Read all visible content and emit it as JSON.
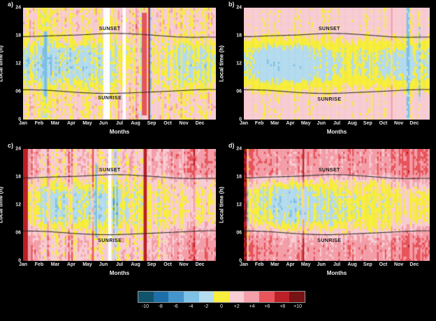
{
  "figure": {
    "background": "#000000",
    "text_color": "#ffffff"
  },
  "axes": {
    "ylabel": "Local time (h)",
    "xlabel": "Months",
    "y_ticks": [
      {
        "label": "0",
        "value": 0
      },
      {
        "label": "06",
        "value": 6
      },
      {
        "label": "12",
        "value": 12
      },
      {
        "label": "18",
        "value": 18
      },
      {
        "label": "24",
        "value": 24
      }
    ],
    "x_ticks": [
      "Jan",
      "Feb",
      "Mar",
      "Apr",
      "May",
      "Jun",
      "Jul",
      "Aug",
      "Sep",
      "Oct",
      "Nov",
      "Dec"
    ]
  },
  "annotations": {
    "sunset": "SUNSET",
    "sunrise": "SUNRISE"
  },
  "chart_data": {
    "type": "heatmap",
    "x_range_months": [
      0,
      12
    ],
    "y_range_hours": [
      0,
      24
    ],
    "sunset_h": [
      17.8,
      17.95,
      18.05,
      18.15,
      18.35,
      18.5,
      18.45,
      18.25,
      18.0,
      17.75,
      17.65,
      17.7
    ],
    "sunrise_h": [
      6.4,
      6.3,
      6.05,
      5.8,
      5.65,
      5.6,
      5.7,
      5.85,
      6.0,
      6.15,
      6.35,
      6.45
    ],
    "time_bin_centers_h": [
      1,
      3,
      5,
      7,
      9,
      11,
      13,
      15,
      17,
      19,
      21,
      23
    ],
    "colorbar": {
      "min": -10,
      "max": 10,
      "colors": [
        "#11536b",
        "#1e6fa9",
        "#4395cc",
        "#7fc1e4",
        "#b5dcef",
        "#f8ee3d",
        "#f9cdd4",
        "#f49fa9",
        "#e8555b",
        "#bb2026",
        "#771215"
      ],
      "labels": [
        "-10",
        "-8",
        "-6",
        "-4",
        "-2",
        "0",
        "+2",
        "+4",
        "+6",
        "+8",
        "+10"
      ]
    },
    "panels": [
      {
        "id": "a",
        "label": "a)",
        "noise_col": 1.3,
        "noise_cell": 1.1,
        "stripe_prob": 0.05,
        "stripe_bias": 0.5,
        "grid": [
          [
            1.5,
            0.3,
            1.5,
            1.5,
            1.5,
            1.5,
            1.6,
            1.8,
            1.5,
            1.5,
            1.5,
            1.5
          ],
          [
            1.5,
            0.2,
            1.5,
            1.5,
            1.4,
            1.5,
            1.6,
            1.8,
            1.5,
            1.5,
            1.5,
            1.5
          ],
          [
            1.5,
            0.4,
            1.5,
            1.5,
            1.4,
            1.5,
            1.5,
            1.8,
            1.5,
            1.5,
            1.5,
            1.5
          ],
          [
            0.6,
            -0.8,
            0.5,
            0.4,
            0.4,
            0.6,
            1.0,
            1.2,
            0.8,
            0.5,
            0.5,
            0.6
          ],
          [
            -1.0,
            -2.2,
            -1.2,
            -1.6,
            -1.2,
            -0.8,
            0.6,
            1.2,
            0.6,
            -0.8,
            -1.0,
            -1.0
          ],
          [
            -1.6,
            -2.6,
            -1.6,
            -2.0,
            -1.6,
            -1.0,
            0.4,
            1.2,
            0.5,
            -1.0,
            -1.4,
            -1.4
          ],
          [
            -1.6,
            -2.6,
            -1.6,
            -2.0,
            -1.6,
            -1.0,
            -0.4,
            1.0,
            0.5,
            -1.0,
            -1.4,
            -1.4
          ],
          [
            -1.0,
            -2.0,
            -1.2,
            -1.5,
            -1.2,
            -0.8,
            -0.4,
            0.8,
            0.6,
            -0.8,
            -1.0,
            -1.0
          ],
          [
            0.6,
            -0.8,
            0.5,
            0.5,
            0.5,
            0.6,
            0.8,
            1.2,
            1.0,
            0.6,
            0.6,
            0.6
          ],
          [
            1.5,
            0.4,
            1.5,
            1.5,
            1.5,
            1.5,
            1.6,
            1.8,
            1.5,
            1.5,
            1.5,
            1.5
          ],
          [
            1.5,
            0.4,
            1.5,
            1.5,
            1.5,
            1.5,
            1.6,
            1.8,
            1.5,
            1.5,
            1.5,
            1.5
          ],
          [
            1.5,
            0.4,
            1.5,
            1.5,
            1.5,
            1.5,
            1.6,
            1.8,
            1.5,
            1.5,
            1.5,
            1.5
          ]
        ],
        "events": [
          {
            "month": 7.45,
            "width": 0.3,
            "t0": 1,
            "t1": 23,
            "value": 6.5
          },
          {
            "month": 7.8,
            "width": 0.1,
            "t0": 0,
            "t1": 24,
            "value": 8.5
          },
          {
            "month": 1.35,
            "width": 0.15,
            "t0": 5,
            "t1": 19,
            "value": -4.5
          }
        ],
        "gaps": [
          {
            "month": 4.95,
            "width": 0.5
          },
          {
            "month": 6.2,
            "width": 0.18
          }
        ]
      },
      {
        "id": "b",
        "label": "b)",
        "noise_col": 0.55,
        "noise_cell": 0.5,
        "stripe_prob": 0.02,
        "stripe_bias": 0.3,
        "grid": [
          [
            1.6,
            1.5,
            1.5,
            1.5,
            1.6,
            1.6,
            1.7,
            1.7,
            1.6,
            1.6,
            1.4,
            1.5
          ],
          [
            1.6,
            1.5,
            1.5,
            1.5,
            1.6,
            1.6,
            1.7,
            1.7,
            1.6,
            1.6,
            1.4,
            1.5
          ],
          [
            1.6,
            1.5,
            1.5,
            1.5,
            1.6,
            1.6,
            1.7,
            1.7,
            1.6,
            1.6,
            1.4,
            1.5
          ],
          [
            0.8,
            0.2,
            0.1,
            0.2,
            0.5,
            0.8,
            1.0,
            1.1,
            1.0,
            0.8,
            0.4,
            0.6
          ],
          [
            -0.8,
            -1.8,
            -2.0,
            -1.9,
            -1.4,
            -0.9,
            -0.5,
            -0.5,
            -0.6,
            -1.0,
            -1.4,
            -1.0
          ],
          [
            -1.2,
            -2.3,
            -2.5,
            -2.4,
            -1.8,
            -1.3,
            -0.8,
            -0.8,
            -0.9,
            -1.4,
            -1.8,
            -1.3
          ],
          [
            -1.2,
            -2.3,
            -2.5,
            -2.4,
            -1.8,
            -1.3,
            -0.8,
            -0.8,
            -0.9,
            -1.4,
            -1.8,
            -1.3
          ],
          [
            -0.8,
            -1.8,
            -2.0,
            -1.9,
            -1.4,
            -0.9,
            -0.5,
            -0.5,
            -0.6,
            -1.0,
            -1.4,
            -1.0
          ],
          [
            0.8,
            0.3,
            0.2,
            0.4,
            0.7,
            1.0,
            1.1,
            1.1,
            1.0,
            0.8,
            0.5,
            0.7
          ],
          [
            1.6,
            1.5,
            1.5,
            1.5,
            1.6,
            1.6,
            1.7,
            1.7,
            1.6,
            1.6,
            1.4,
            1.5
          ],
          [
            1.6,
            1.5,
            1.5,
            1.5,
            1.6,
            1.6,
            1.7,
            1.7,
            1.6,
            1.6,
            1.4,
            1.5
          ],
          [
            1.6,
            1.5,
            1.5,
            1.5,
            1.6,
            1.6,
            1.7,
            1.7,
            1.6,
            1.6,
            1.4,
            1.5
          ]
        ],
        "events": [
          {
            "month": 10.55,
            "width": 0.12,
            "t0": 0,
            "t1": 24,
            "value": -3.2
          },
          {
            "month": 11.3,
            "width": 0.1,
            "t0": 4,
            "t1": 20,
            "value": -2.8
          }
        ],
        "gaps": []
      },
      {
        "id": "c",
        "label": "c)",
        "noise_col": 1.3,
        "noise_cell": 1.1,
        "stripe_prob": 0.06,
        "stripe_bias": 0.7,
        "grid": [
          [
            4.5,
            2.2,
            2.0,
            2.0,
            2.0,
            2.0,
            2.2,
            2.4,
            2.6,
            3.2,
            4.2,
            4.4
          ],
          [
            4.5,
            2.2,
            2.0,
            2.0,
            2.0,
            2.0,
            2.2,
            2.4,
            2.6,
            3.2,
            4.2,
            4.4
          ],
          [
            3.6,
            2.0,
            1.8,
            1.8,
            1.8,
            1.8,
            2.0,
            2.2,
            2.4,
            3.0,
            4.0,
            4.2
          ],
          [
            2.2,
            1.0,
            0.6,
            0.6,
            0.6,
            0.9,
            1.1,
            1.2,
            1.4,
            2.0,
            2.8,
            3.0
          ],
          [
            0.6,
            -1.0,
            -1.5,
            -1.6,
            -1.4,
            -0.9,
            -0.4,
            0.4,
            0.5,
            0.8,
            1.2,
            1.2
          ],
          [
            0.5,
            -1.4,
            -2.0,
            -2.0,
            -1.6,
            -1.0,
            -0.5,
            0.3,
            0.5,
            0.8,
            1.2,
            1.2
          ],
          [
            0.5,
            -1.4,
            -2.0,
            -2.0,
            -1.6,
            -1.0,
            -0.5,
            0.3,
            0.5,
            0.8,
            1.2,
            1.2
          ],
          [
            0.6,
            -1.0,
            -1.5,
            -1.5,
            -1.2,
            -0.6,
            0.3,
            0.5,
            0.6,
            1.0,
            1.3,
            1.3
          ],
          [
            2.0,
            1.0,
            0.7,
            0.7,
            0.9,
            1.1,
            1.2,
            1.3,
            1.5,
            2.0,
            2.4,
            2.4
          ],
          [
            4.4,
            2.2,
            2.0,
            2.0,
            2.0,
            2.1,
            2.2,
            2.5,
            3.0,
            3.4,
            4.3,
            4.5
          ],
          [
            4.4,
            2.2,
            2.0,
            2.0,
            2.0,
            2.1,
            2.2,
            2.5,
            3.0,
            3.4,
            4.3,
            4.5
          ],
          [
            4.4,
            2.2,
            2.0,
            2.0,
            2.0,
            2.1,
            2.2,
            2.5,
            3.0,
            3.4,
            4.3,
            4.5
          ]
        ],
        "events": [
          {
            "month": 0.05,
            "width": 0.22,
            "t0": 0,
            "t1": 24,
            "value": 8.5
          },
          {
            "month": 7.5,
            "width": 0.18,
            "t0": 0,
            "t1": 24,
            "value": 7.5
          },
          {
            "month": 4.55,
            "width": 0.1,
            "t0": 5,
            "t1": 21,
            "value": -3.5
          }
        ],
        "gaps": [
          {
            "month": 5.35,
            "width": 0.12
          }
        ]
      },
      {
        "id": "d",
        "label": "d)",
        "noise_col": 1.1,
        "noise_cell": 0.9,
        "stripe_prob": 0.05,
        "stripe_bias": 0.7,
        "grid": [
          [
            5.5,
            4.5,
            4.2,
            4.0,
            4.0,
            4.0,
            4.2,
            4.2,
            4.2,
            4.4,
            5.2,
            5.4
          ],
          [
            5.5,
            4.5,
            4.2,
            4.0,
            4.0,
            4.0,
            4.2,
            4.2,
            4.2,
            4.4,
            5.2,
            5.4
          ],
          [
            4.8,
            4.0,
            3.6,
            3.2,
            3.0,
            3.0,
            3.2,
            3.2,
            3.2,
            3.8,
            4.8,
            5.0
          ],
          [
            3.0,
            2.0,
            1.2,
            1.0,
            1.0,
            1.0,
            1.1,
            1.2,
            1.2,
            2.0,
            3.0,
            3.2
          ],
          [
            0.6,
            -1.0,
            -1.6,
            -1.7,
            -1.5,
            -1.0,
            -0.5,
            -0.4,
            0.4,
            0.6,
            1.0,
            1.0
          ],
          [
            0.5,
            -1.4,
            -2.0,
            -2.1,
            -1.7,
            -1.1,
            -0.6,
            -0.5,
            0.3,
            0.6,
            1.0,
            1.0
          ],
          [
            0.5,
            -1.4,
            -2.0,
            -2.1,
            -1.7,
            -1.1,
            -0.6,
            -0.5,
            0.3,
            0.6,
            1.0,
            1.0
          ],
          [
            0.8,
            -1.0,
            -1.5,
            -1.6,
            -1.2,
            -0.7,
            0.3,
            0.4,
            0.5,
            0.8,
            1.1,
            1.1
          ],
          [
            3.0,
            1.2,
            1.0,
            1.0,
            1.0,
            1.1,
            1.2,
            1.2,
            1.4,
            2.2,
            3.0,
            3.2
          ],
          [
            5.4,
            4.4,
            4.2,
            4.0,
            4.0,
            4.0,
            4.2,
            4.2,
            4.2,
            4.5,
            5.2,
            5.4
          ],
          [
            5.4,
            4.4,
            4.2,
            4.0,
            4.0,
            4.0,
            4.2,
            4.2,
            4.2,
            4.5,
            5.2,
            5.4
          ],
          [
            5.4,
            4.4,
            4.2,
            4.0,
            4.0,
            4.0,
            4.2,
            4.2,
            4.2,
            4.5,
            5.2,
            5.4
          ]
        ],
        "events": [
          {
            "month": 0.05,
            "width": 0.18,
            "t0": 0,
            "t1": 24,
            "value": 9.0
          }
        ],
        "gaps": []
      }
    ]
  }
}
